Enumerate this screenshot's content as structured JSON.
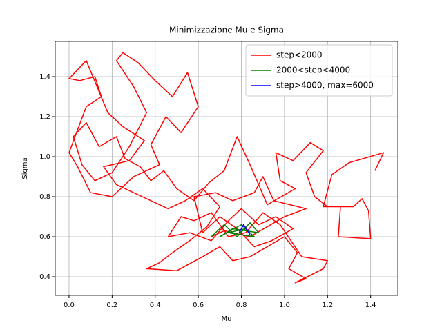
{
  "chart_data": {
    "type": "line",
    "title": "Minimizzazione Mu e Sigma",
    "x_label": "Mu",
    "y_label": "Sigma",
    "xlim": [
      -0.064,
      1.526
    ],
    "ylim": [
      0.307,
      1.576
    ],
    "xticks": [
      {
        "value": 0,
        "label": "0.0"
      },
      0.2,
      0.4,
      0.6,
      0.8,
      {
        "value": 1,
        "label": "1.0"
      },
      1.2,
      1.4
    ],
    "yticks": [
      0.4,
      0.6,
      0.8,
      {
        "value": 1,
        "label": "1.0"
      },
      1.2,
      1.4
    ],
    "grid": true,
    "legend": "upper right",
    "series": [
      {
        "name": "step<2000",
        "color": "#ff0000",
        "x": [
          1.42,
          1.46,
          1.3,
          1.22,
          1.18,
          1.32,
          1.36,
          1.39,
          1.4,
          1.25,
          1.26,
          1.2,
          1.14,
          1.1,
          1.18,
          1.12,
          1.04,
          0.96,
          0.98,
          1.05,
          0.92,
          0.84,
          0.78,
          0.72,
          0.65,
          0.58,
          0.5,
          0.44,
          0.38,
          0.33,
          0.26,
          0.22,
          0.14,
          0.08,
          0.02,
          0.06,
          0.12,
          0.2,
          0.28,
          0.36,
          0.3,
          0.22,
          0.25,
          0.32,
          0.4,
          0.48,
          0.55,
          0.6,
          0.52,
          0.45,
          0.38,
          0.42,
          0.3,
          0.2,
          0.1,
          0.04,
          0.0,
          0.08,
          0.15,
          0.12,
          0.05,
          0.0,
          0.08,
          0.18,
          0.25,
          0.35,
          0.28,
          0.16,
          0.22,
          0.34,
          0.46,
          0.54,
          0.62,
          0.7,
          0.64,
          0.56,
          0.48,
          0.42,
          0.36,
          0.5,
          0.62,
          0.7,
          0.76,
          0.84,
          0.92,
          1.0,
          1.06,
          1.02,
          1.1,
          1.05,
          1.18,
          1.2,
          1.08,
          0.98,
          0.9,
          0.82,
          0.74,
          0.66,
          0.58,
          0.52,
          0.46,
          0.56,
          0.66,
          0.74,
          0.8,
          0.88,
          0.96,
          1.04,
          0.94,
          0.86,
          0.78,
          0.7,
          0.62,
          0.58,
          0.68,
          0.76,
          0.86,
          0.9,
          0.95,
          1.1,
          1.0,
          0.84,
          0.72,
          0.66
        ],
        "values": [
          0.93,
          1.02,
          0.97,
          0.91,
          0.75,
          0.75,
          0.79,
          0.73,
          0.59,
          0.6,
          0.75,
          0.75,
          0.8,
          0.92,
          1.03,
          1.07,
          0.98,
          1.02,
          0.88,
          0.84,
          0.76,
          0.96,
          1.1,
          0.93,
          0.87,
          0.78,
          0.84,
          0.93,
          0.88,
          0.95,
          0.99,
          1.1,
          1.05,
          1.17,
          1.1,
          0.96,
          0.88,
          0.92,
          1.05,
          1.22,
          1.35,
          1.48,
          1.52,
          1.47,
          1.38,
          1.3,
          1.42,
          1.25,
          1.12,
          1.2,
          1.06,
          0.96,
          0.9,
          0.8,
          0.82,
          0.95,
          1.02,
          1.25,
          1.3,
          1.4,
          1.38,
          1.39,
          1.48,
          1.22,
          1.15,
          1.08,
          0.98,
          0.95,
          0.86,
          0.8,
          0.74,
          0.78,
          0.84,
          0.75,
          0.65,
          0.58,
          0.52,
          0.47,
          0.44,
          0.43,
          0.5,
          0.55,
          0.48,
          0.5,
          0.55,
          0.6,
          0.52,
          0.44,
          0.39,
          0.37,
          0.44,
          0.48,
          0.5,
          0.66,
          0.72,
          0.62,
          0.6,
          0.72,
          0.68,
          0.7,
          0.6,
          0.62,
          0.58,
          0.68,
          0.74,
          0.66,
          0.7,
          0.64,
          0.58,
          0.55,
          0.64,
          0.7,
          0.62,
          0.8,
          0.82,
          0.78,
          0.82,
          0.9,
          0.78,
          0.74,
          0.7,
          0.6,
          0.63,
          0.6
        ]
      },
      {
        "name": "2000<step<4000",
        "color": "#008000",
        "x": [
          0.66,
          0.72,
          0.78,
          0.84,
          0.88,
          0.76,
          0.7,
          0.8,
          0.86,
          0.74,
          0.82,
          0.79
        ],
        "values": [
          0.6,
          0.66,
          0.6,
          0.67,
          0.62,
          0.64,
          0.6,
          0.66,
          0.6,
          0.62,
          0.64,
          0.62
        ]
      },
      {
        "name": "step>4000, max=6000",
        "color": "#0000ff",
        "x": [
          0.79,
          0.81,
          0.83,
          0.82,
          0.84
        ],
        "values": [
          0.62,
          0.66,
          0.63,
          0.64,
          0.61
        ]
      }
    ]
  }
}
